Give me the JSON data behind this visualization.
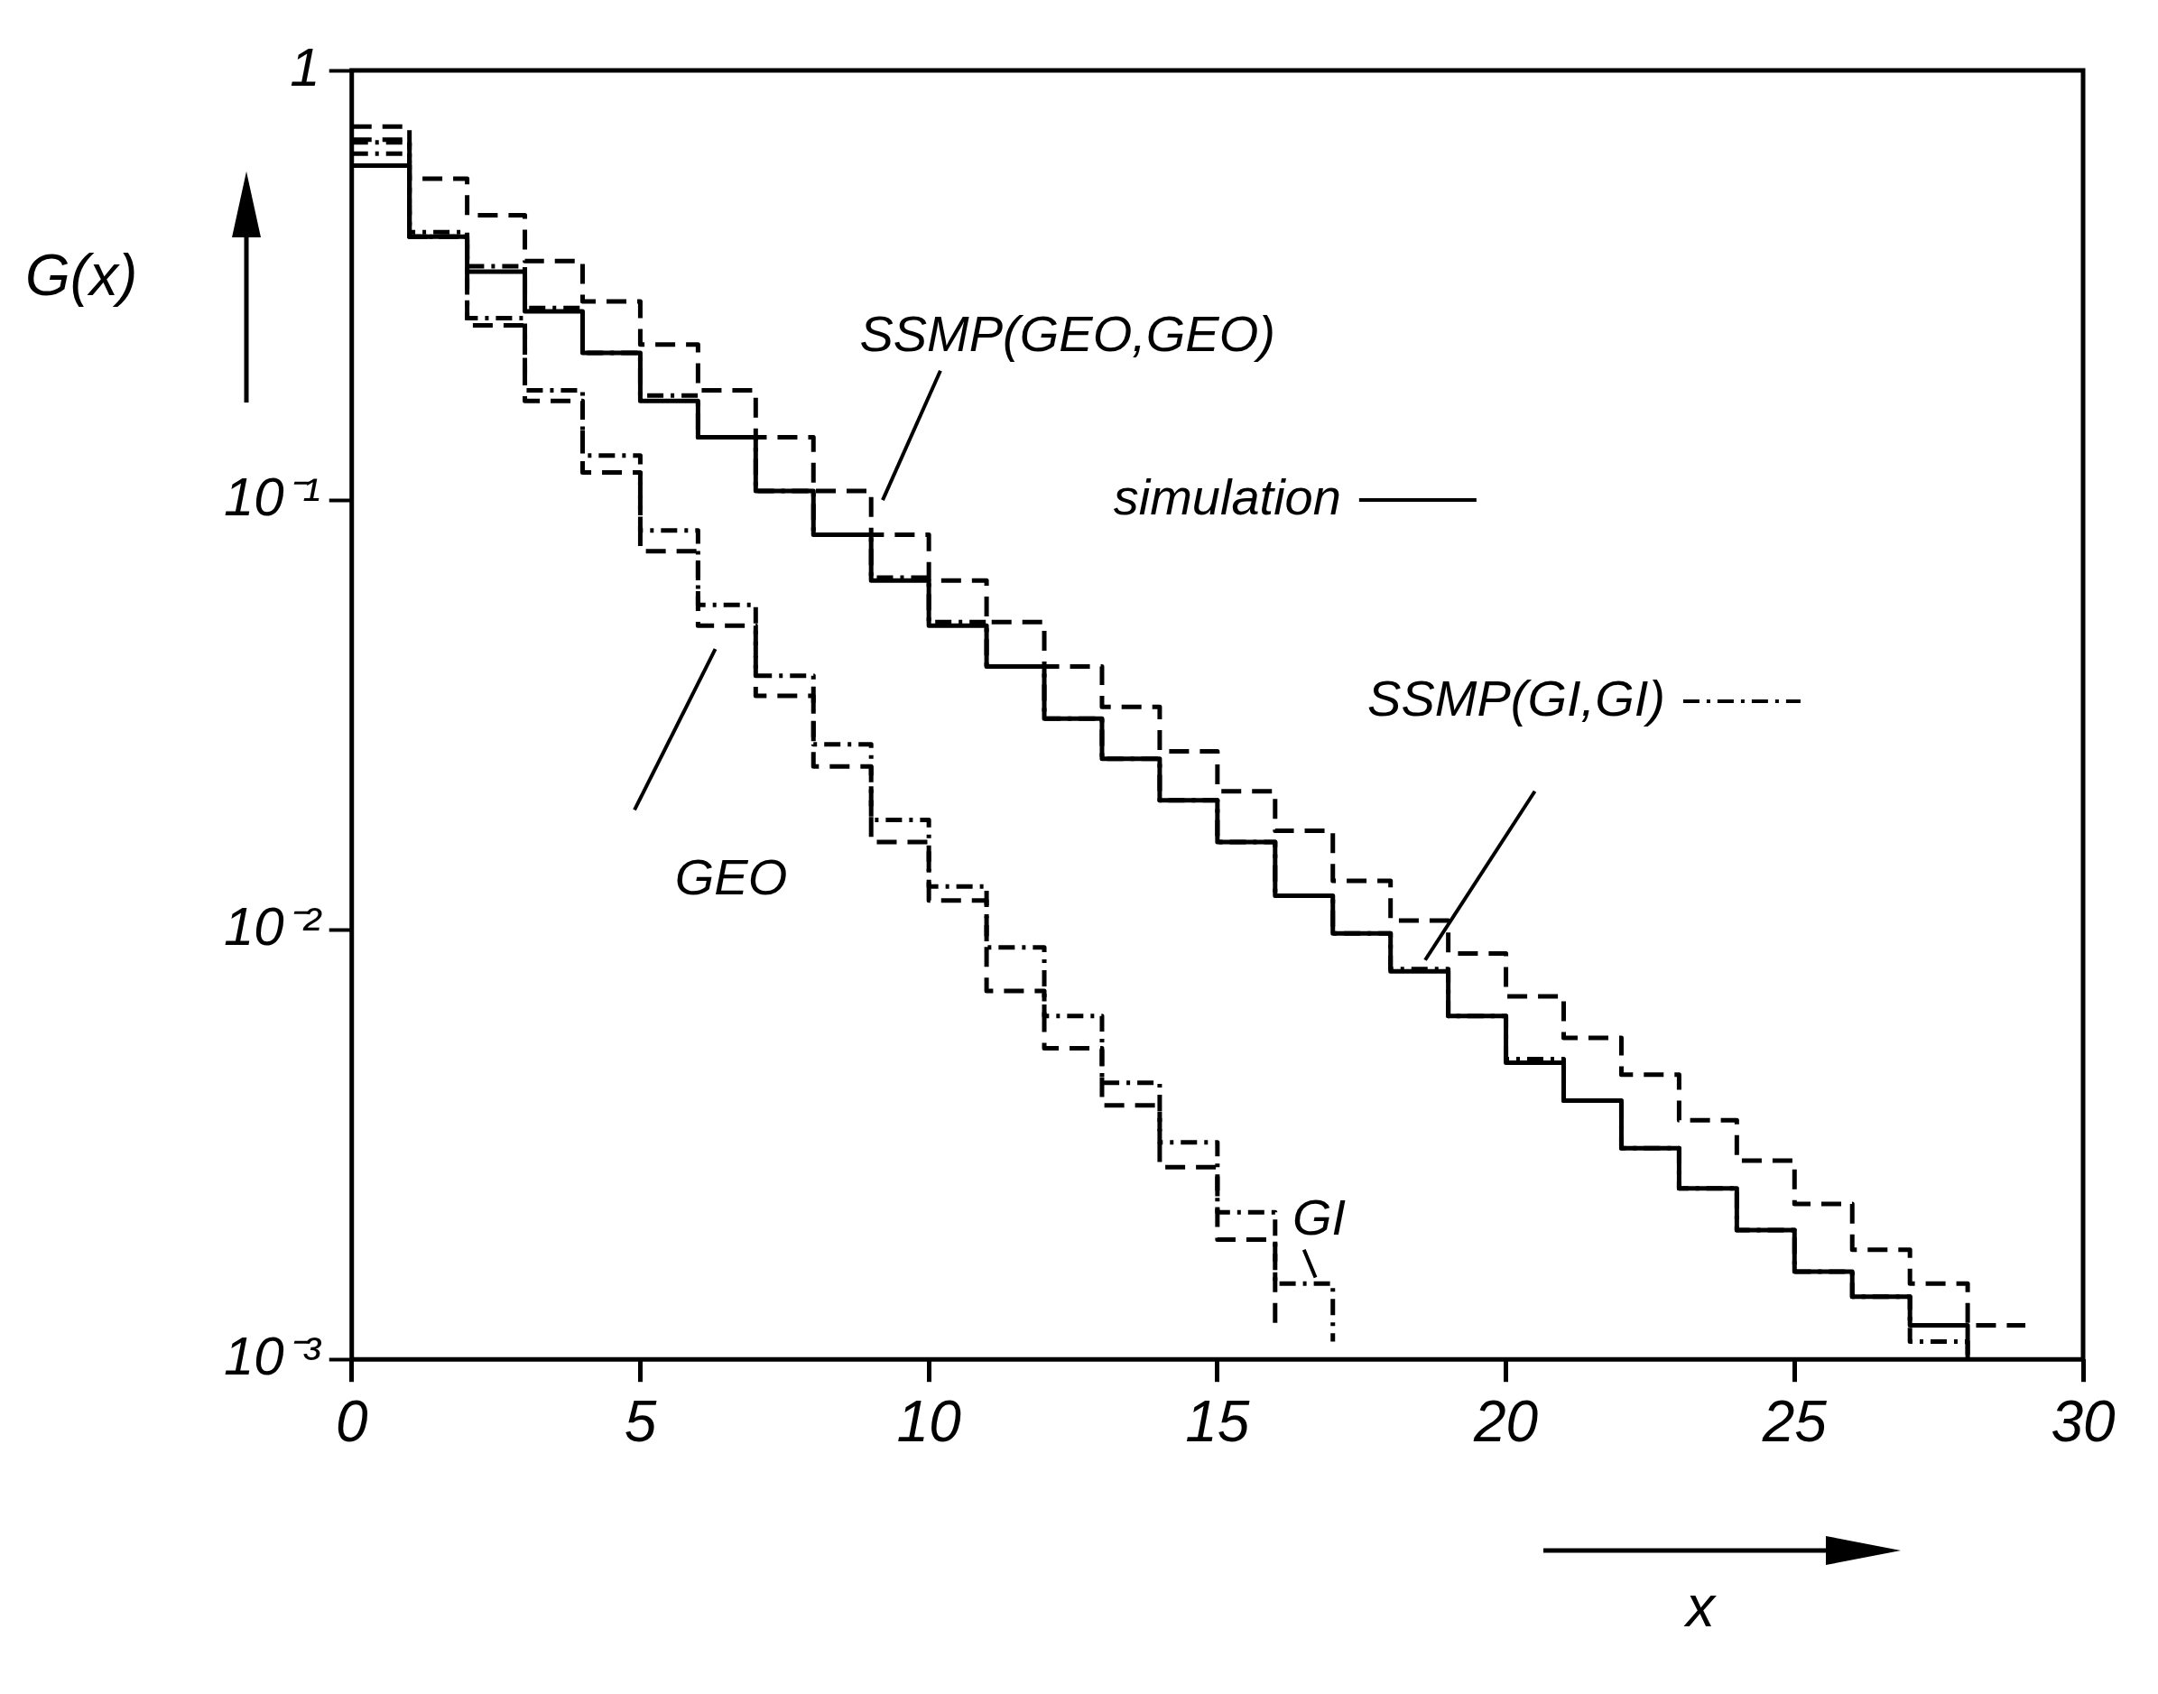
{
  "chart_data": {
    "type": "step",
    "legend": "right",
    "xlabel": "x",
    "ylabel": "G(x)",
    "log": "y",
    "xlim": [
      0,
      30
    ],
    "xticks": [
      0,
      5,
      10,
      15,
      20,
      25,
      30
    ],
    "ylim": [
      0.001,
      1
    ],
    "yticks": [
      {
        "value": 0.001,
        "label": "10⁻³"
      },
      {
        "value": 0.01,
        "label": "10⁻²"
      },
      {
        "value": 0.1,
        "label": "10⁻¹"
      },
      {
        "value": 1,
        "label": "1"
      }
    ],
    "x": [
      0,
      1,
      2,
      3,
      4,
      5,
      6,
      7,
      8,
      9,
      10,
      11,
      12,
      13,
      14,
      15,
      16,
      17,
      18,
      19,
      20,
      21,
      22,
      23,
      24,
      25,
      26,
      27,
      28,
      29
    ],
    "series": [
      {
        "name": "simulation",
        "color": "#000000",
        "line_style": "solid",
        "values": [
          0.6,
          0.41,
          0.34,
          0.275,
          0.22,
          0.17,
          0.14,
          0.105,
          0.083,
          0.065,
          0.051,
          0.041,
          0.031,
          0.025,
          0.02,
          0.016,
          0.012,
          0.0098,
          0.008,
          0.0063,
          0.0049,
          0.004,
          0.0031,
          0.0025,
          0.002,
          0.0016,
          0.0014,
          0.0012,
          0.001,
          null
        ]
      },
      {
        "name": "SSMP(GEO,GEO)",
        "color": "#000000",
        "line_style": "dashed",
        "values": [
          0.74,
          0.56,
          0.46,
          0.36,
          0.29,
          0.23,
          0.18,
          0.14,
          0.105,
          0.083,
          0.065,
          0.052,
          0.041,
          0.033,
          0.026,
          0.021,
          0.017,
          0.013,
          0.0105,
          0.0088,
          0.007,
          0.0056,
          0.0046,
          0.0036,
          0.0029,
          0.0023,
          0.0018,
          0.0015,
          0.0012,
          0.0012
        ]
      },
      {
        "name": "SSMP(GI,GI)",
        "color": "#000000",
        "line_style": "dotted",
        "values": [
          0.68,
          0.42,
          0.35,
          0.28,
          0.22,
          0.175,
          0.14,
          0.105,
          0.083,
          0.066,
          0.052,
          0.041,
          0.031,
          0.025,
          0.02,
          0.016,
          0.012,
          0.0098,
          0.0081,
          0.0063,
          0.005,
          0.004,
          0.0031,
          0.0025,
          0.002,
          0.0016,
          0.0014,
          0.0011,
          0.001,
          null
        ]
      },
      {
        "name": "GEO",
        "color": "#000000",
        "line_style": "dashed",
        "values": [
          0.69,
          0.41,
          0.255,
          0.17,
          0.116,
          0.076,
          0.051,
          0.035,
          0.024,
          0.016,
          0.0117,
          0.0072,
          0.0053,
          0.0039,
          0.0028,
          0.0019,
          0.0012,
          null,
          null,
          null,
          null,
          null,
          null,
          null,
          null,
          null,
          null,
          null,
          null,
          null
        ]
      },
      {
        "name": "GI",
        "color": "#000000",
        "line_style": "dotted",
        "values": [
          0.64,
          0.41,
          0.265,
          0.18,
          0.127,
          0.085,
          0.057,
          0.039,
          0.027,
          0.018,
          0.0126,
          0.0091,
          0.0063,
          0.0044,
          0.0032,
          0.0022,
          0.0015,
          0.0011,
          null,
          null,
          null,
          null,
          null,
          null,
          null,
          null,
          null,
          null,
          null,
          null
        ]
      }
    ]
  }
}
